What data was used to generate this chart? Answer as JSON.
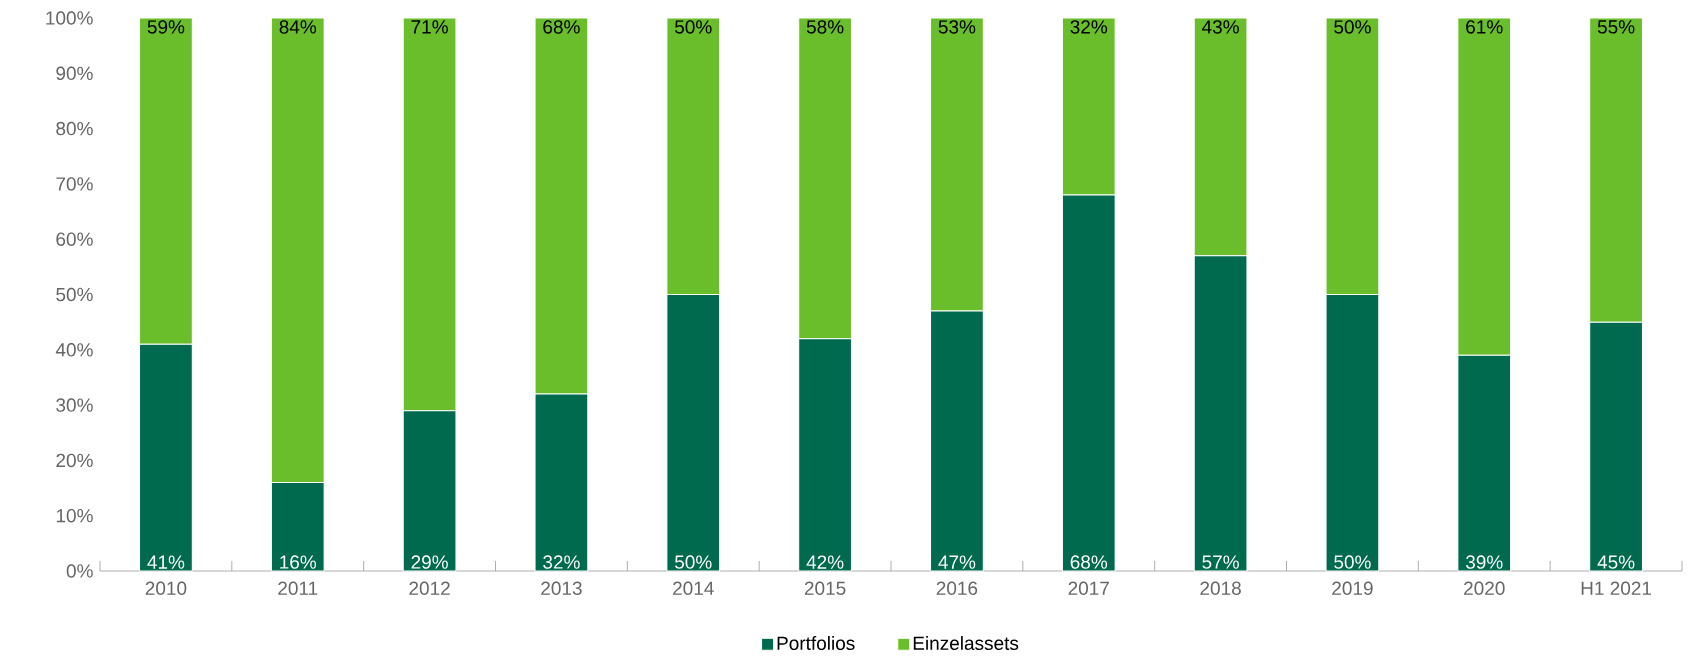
{
  "chart_data": {
    "type": "bar",
    "stacked": true,
    "categories": [
      "2010",
      "2011",
      "2012",
      "2013",
      "2014",
      "2015",
      "2016",
      "2017",
      "2018",
      "2019",
      "2020",
      "H1 2021"
    ],
    "series": [
      {
        "name": "Portfolios",
        "color": "#006a4e",
        "values": [
          41,
          16,
          29,
          32,
          50,
          42,
          47,
          68,
          57,
          50,
          39,
          45
        ],
        "value_labels": [
          "41%",
          "16%",
          "29%",
          "32%",
          "50%",
          "42%",
          "47%",
          "68%",
          "57%",
          "50%",
          "39%",
          "45%"
        ]
      },
      {
        "name": "Einzelassets",
        "color": "#6abd2b",
        "values": [
          59,
          84,
          71,
          68,
          50,
          58,
          53,
          32,
          43,
          50,
          61,
          55
        ],
        "value_labels": [
          "59%",
          "84%",
          "71%",
          "68%",
          "50%",
          "58%",
          "53%",
          "32%",
          "43%",
          "50%",
          "61%",
          "55%"
        ]
      }
    ],
    "ylim": [
      0,
      100
    ],
    "yticks": [
      {
        "value": 0,
        "label": "0%"
      },
      {
        "value": 10,
        "label": "10%"
      },
      {
        "value": 20,
        "label": "20%"
      },
      {
        "value": 30,
        "label": "30%"
      },
      {
        "value": 40,
        "label": "40%"
      },
      {
        "value": 50,
        "label": "50%"
      },
      {
        "value": 60,
        "label": "60%"
      },
      {
        "value": 70,
        "label": "70%"
      },
      {
        "value": 80,
        "label": "80%"
      },
      {
        "value": 90,
        "label": "90%"
      },
      {
        "value": 100,
        "label": "100%"
      }
    ],
    "grid": false,
    "legend": "bottom"
  }
}
